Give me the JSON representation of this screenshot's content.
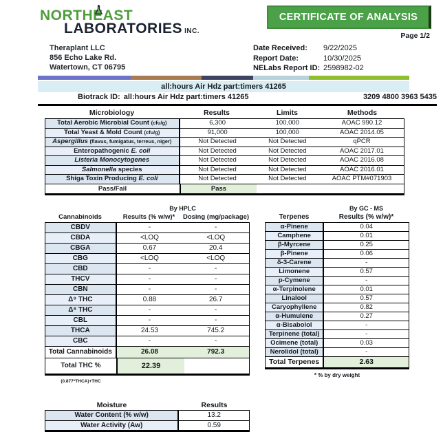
{
  "logo": {
    "line1": "NORTHEAST",
    "line2": "LABORATORIES",
    "suffix": "INC.",
    "green": "#4f9d3c",
    "dark": "#1c2330"
  },
  "banner": {
    "title": "CERTIFICATE OF ANALYSIS",
    "page_label": "Page 1/2",
    "bg": "#4aa147"
  },
  "client": {
    "name": "Theraplant LLC",
    "address1": "856 Echo Lake Rd.",
    "address2": "Watertown, CT 06795"
  },
  "report_info": [
    {
      "label": "Date Received:",
      "value": "9/22/2025"
    },
    {
      "label": "Report Date:",
      "value": "10/30/2025"
    },
    {
      "label": "NELabs Report ID:",
      "value": "2598982-02"
    }
  ],
  "divider_bar": [
    {
      "color": "#6b74c8",
      "pct": 25
    },
    {
      "color": "#a97b50",
      "pct": 19
    },
    {
      "color": "#3e4363",
      "pct": 14
    },
    {
      "color": "#b6d2da",
      "pct": 15
    },
    {
      "color": "#8fbe2e",
      "pct": 27
    }
  ],
  "sample": {
    "title": "all:hours Air Hdz part:timers 41265",
    "biotrack_label": "Biotrack ID:",
    "biotrack_value": "all:hours Air Hdz part:timers 41265",
    "biotrack_number": "3209 4800 3963 5435"
  },
  "microbiology": {
    "headers": [
      "Microbiology",
      "Results",
      "Limits",
      "Methods"
    ],
    "rows": [
      {
        "pre": "Total Aerobic Microbial Count ",
        "note": "(cfu/g)",
        "result": "6,300",
        "limit": "100,000",
        "method": "AOAC 990.12"
      },
      {
        "pre": "Total Yeast & Mold Count ",
        "note": "(cfu/g)",
        "result": "91,000",
        "limit": "100,000",
        "method": "AOAC 2014.05"
      },
      {
        "it": "Aspergillus ",
        "note": "(flavus, fumigatus, terreus, niger)",
        "result": "Not Detected",
        "limit": "Not Detected",
        "method": "qPCR"
      },
      {
        "pre": "Enteropathogenic ",
        "it": "E. coli",
        "result": "Not Detected",
        "limit": "Not Detected",
        "method": "AOAC 2017.01"
      },
      {
        "it": "Listeria Monocytogenes",
        "result": "Not Detected",
        "limit": "Not Detected",
        "method": "AOAC 2016.08"
      },
      {
        "it": "Salmonella",
        "post": " species",
        "result": "Not Detected",
        "limit": "Not Detected",
        "method": "AOAC 2016.01"
      },
      {
        "pre": "Shiga Toxin Producing ",
        "it": "E. coli",
        "result": "Not Detected",
        "limit": "Not Detected",
        "method": "AOAC PTM#071903"
      }
    ],
    "passfail_label": "Pass/Fail",
    "passfail_value": "Pass"
  },
  "cannabinoids": {
    "method_note": "By HPLC",
    "headers": [
      "Cannabinoids",
      "Results (% w/w)*",
      "Dosing (mg/package)"
    ],
    "rows": [
      {
        "name": "CBDV",
        "result": "-",
        "dosing": "-"
      },
      {
        "name": "CBDA",
        "result": "<LOQ",
        "dosing": "<LOQ"
      },
      {
        "name": "CBGA",
        "result": "0.67",
        "dosing": "20.4"
      },
      {
        "name": "CBG",
        "result": "<LOQ",
        "dosing": "<LOQ"
      },
      {
        "name": "CBD",
        "result": "-",
        "dosing": "-"
      },
      {
        "name": "THCV",
        "result": "-",
        "dosing": "-"
      },
      {
        "name": "CBN",
        "result": "-",
        "dosing": "-"
      },
      {
        "name": "Δ⁹ THC",
        "result": "0.88",
        "dosing": "26.7"
      },
      {
        "name": "Δ⁸ THC",
        "result": "-",
        "dosing": "-"
      },
      {
        "name": "CBL",
        "result": "-",
        "dosing": "-"
      },
      {
        "name": "THCA",
        "result": "24.53",
        "dosing": "745.2"
      },
      {
        "name": "CBC",
        "result": "-",
        "dosing": "-"
      }
    ],
    "total_label": "Total Cannabinoids",
    "total_result": "26.08",
    "total_dosing": "792.3",
    "thc_label": "Total THC %",
    "thc_formula": "(0.877*THCA)+THC",
    "thc_value": "22.39"
  },
  "terpenes": {
    "method_note": "By GC - MS",
    "headers": [
      "Terpenes",
      "Results (% w/w)*"
    ],
    "rows": [
      {
        "name": "α-Pinene",
        "value": "0.04"
      },
      {
        "name": "Camphene",
        "value": "0.01"
      },
      {
        "name": "β-Myrcene",
        "value": "0.25"
      },
      {
        "name": "β-Pinene",
        "value": "0.06"
      },
      {
        "name": "δ-3-Carene",
        "value": "-"
      },
      {
        "name": "Limonene",
        "value": "0.57"
      },
      {
        "name": "p-Cymene",
        "value": "-"
      },
      {
        "name": "α-Terpinolene",
        "value": "0.01"
      },
      {
        "name": "Linalool",
        "value": "0.57"
      },
      {
        "name": "Caryophyllene",
        "value": "0.82"
      },
      {
        "name": "α-Humulene",
        "value": "0.27"
      },
      {
        "name": "α-Bisabolol",
        "value": "-"
      },
      {
        "name": "Terpinene (total)",
        "value": "-"
      },
      {
        "name": "Ocimene (total)",
        "value": "0.03"
      },
      {
        "name": "Nerolidol (total)",
        "value": "-"
      }
    ],
    "total_label": "Total Terpenes",
    "total_value": "2.63",
    "footnote": "* % by dry weight"
  },
  "moisture": {
    "headers": [
      "Moisture",
      "Results"
    ],
    "rows": [
      {
        "name": "Water Content (% w/w)",
        "value": "13.2"
      },
      {
        "name": "Water Activity (Aw)",
        "value": "0.59"
      }
    ]
  }
}
